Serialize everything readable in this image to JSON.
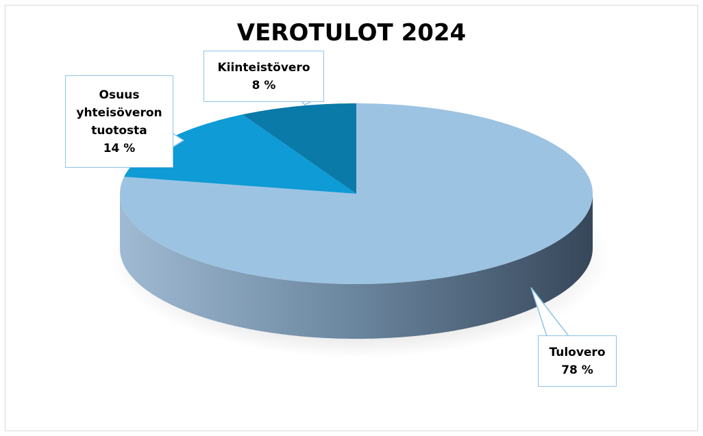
{
  "chart_data": {
    "type": "pie",
    "title": "VEROTULOT 2024",
    "categories": [
      "Tulovero",
      "Osuus yhteisöveron tuotosta",
      "Kiinteistövero"
    ],
    "values": [
      78,
      14,
      8
    ],
    "value_labels": [
      "78 %",
      "14 %",
      "8 %"
    ],
    "colors": [
      "#9dc3e2",
      "#0e9bd6",
      "#0a7aa8"
    ]
  }
}
